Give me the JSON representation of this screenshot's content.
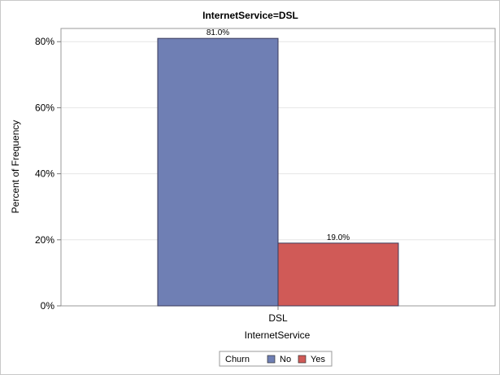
{
  "chart_data": {
    "type": "bar",
    "title": "InternetService=DSL",
    "xlabel": "InternetService",
    "ylabel": "Percent of Frequency",
    "categories": [
      "DSL"
    ],
    "series": [
      {
        "name": "No",
        "values": [
          81.0
        ],
        "color": "#6f7fb4",
        "label": "81.0%"
      },
      {
        "name": "Yes",
        "values": [
          19.0
        ],
        "color": "#d05a57",
        "label": "19.0%"
      }
    ],
    "ylim": [
      0,
      84
    ],
    "yticks": [
      0,
      20,
      40,
      60,
      80
    ],
    "ytick_labels": [
      "0%",
      "20%",
      "40%",
      "60%",
      "80%"
    ],
    "grid": true,
    "legend": {
      "title": "Churn",
      "placement": "bottom-center",
      "entries": [
        "No",
        "Yes"
      ]
    }
  }
}
